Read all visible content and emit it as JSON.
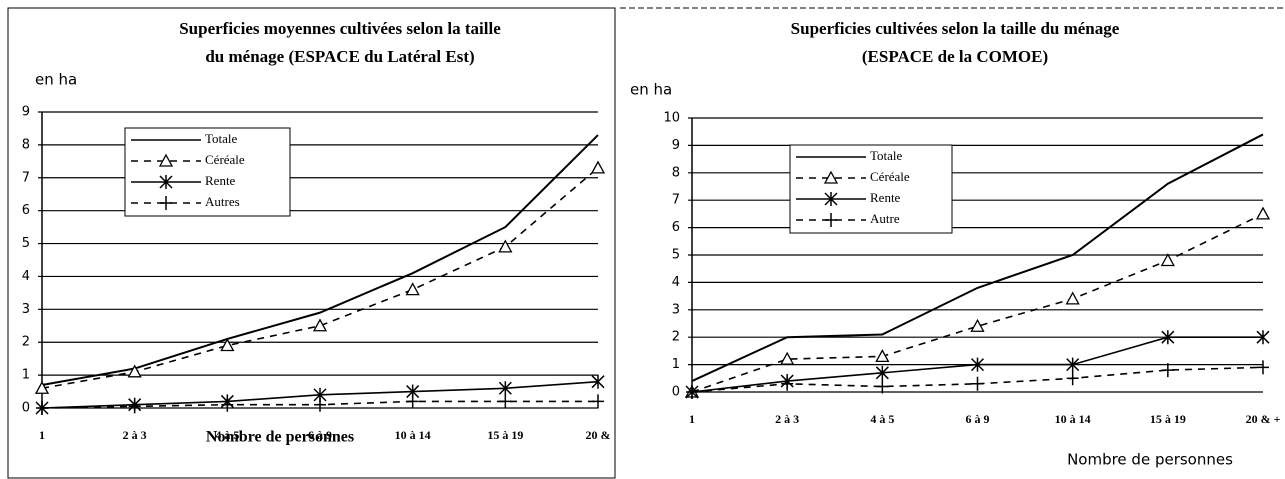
{
  "chart_data": [
    {
      "type": "line",
      "title": [
        "Superficies moyennes cultivées selon la taille",
        "du ménage (ESPACE du Latéral Est)"
      ],
      "y_label": "en ha",
      "x_label": "Nombre de personnes",
      "categories": [
        "1",
        "2 à 3",
        "4 à 5",
        "6 à 9",
        "10 à 14",
        "15 à 19",
        "20 &"
      ],
      "ylim": [
        0,
        9
      ],
      "yticks": [
        0,
        1,
        2,
        3,
        4,
        5,
        6,
        7,
        8,
        9
      ],
      "grid": true,
      "series": [
        {
          "name": "Totale",
          "color": "#000",
          "marker": "none",
          "dash": "solid",
          "values": [
            0.7,
            1.2,
            2.1,
            2.9,
            4.1,
            5.5,
            8.3
          ]
        },
        {
          "name": "Céréale",
          "color": "#000",
          "marker": "triangle",
          "dash": "dashed",
          "values": [
            0.6,
            1.1,
            1.9,
            2.5,
            3.6,
            4.9,
            7.3
          ]
        },
        {
          "name": "Rente",
          "color": "#000",
          "marker": "star",
          "dash": "solid",
          "values": [
            0,
            0.1,
            0.2,
            0.4,
            0.5,
            0.6,
            0.8
          ]
        },
        {
          "name": "Autres",
          "color": "#000",
          "marker": "plus",
          "dash": "dashed",
          "values": [
            0,
            0.05,
            0.1,
            0.1,
            0.2,
            0.2,
            0.2
          ]
        }
      ]
    },
    {
      "type": "line",
      "title": [
        "Superficies cultivées selon la taille du ménage",
        "(ESPACE de la COMOE)"
      ],
      "y_label": "en ha",
      "x_label": "Nombre de personnes",
      "categories": [
        "1",
        "2 à 3",
        "4 à 5",
        "6 à 9",
        "10 à 14",
        "15 à 19",
        "20 & +"
      ],
      "ylim": [
        0,
        10
      ],
      "yticks": [
        0,
        1,
        2,
        3,
        4,
        5,
        6,
        7,
        8,
        9,
        10
      ],
      "grid": true,
      "series": [
        {
          "name": "Totale",
          "color": "#000",
          "marker": "none",
          "dash": "solid",
          "values": [
            0.4,
            2.0,
            2.1,
            3.8,
            5.0,
            7.6,
            9.4
          ]
        },
        {
          "name": "Céréale",
          "color": "#000",
          "marker": "triangle",
          "dash": "dashed",
          "values": [
            0,
            1.2,
            1.3,
            2.4,
            3.4,
            4.8,
            6.5
          ]
        },
        {
          "name": "Rente",
          "color": "#000",
          "marker": "star",
          "dash": "solid",
          "values": [
            0,
            0.4,
            0.7,
            1.0,
            1.0,
            2.0,
            2.0
          ]
        },
        {
          "name": "Autre",
          "color": "#000",
          "marker": "plus",
          "dash": "dashed",
          "values": [
            0,
            0.3,
            0.2,
            0.3,
            0.5,
            0.8,
            0.9
          ]
        }
      ]
    }
  ]
}
